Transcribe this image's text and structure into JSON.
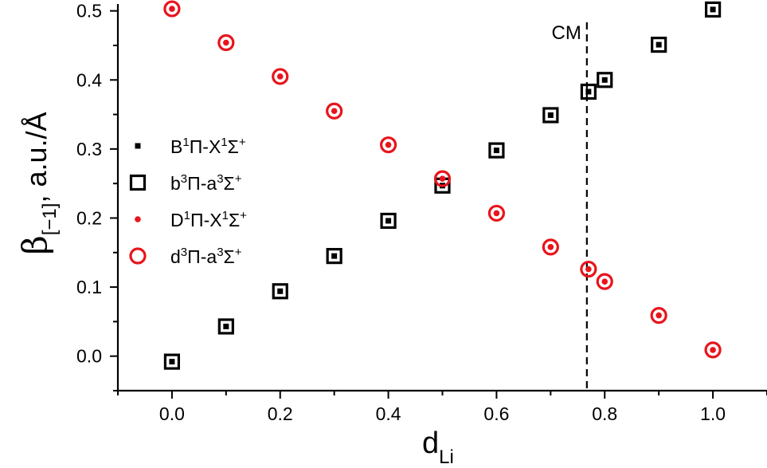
{
  "chart_data": {
    "type": "scatter",
    "xlabel": {
      "main": "d",
      "sub": "Li"
    },
    "ylabel": {
      "main": "β",
      "sub": "[−1]",
      "rest": ", a.u./Å"
    },
    "xlim": [
      -0.1,
      1.1
    ],
    "ylim": [
      -0.05,
      0.51
    ],
    "x_ticks": [
      "0.0",
      "0.2",
      "0.4",
      "0.6",
      "0.8",
      "1.0"
    ],
    "y_ticks": [
      "0.0",
      "0.1",
      "0.2",
      "0.3",
      "0.4",
      "0.5"
    ],
    "grid": false,
    "legend_position": "left-center",
    "series": [
      {
        "name": [
          "B",
          "1",
          "Π-X",
          "1",
          "Σ",
          "+"
        ],
        "marker": "filled-square-small",
        "color": "#000000",
        "x": [
          0.0,
          0.1,
          0.2,
          0.3,
          0.4,
          0.5,
          0.6,
          0.7,
          0.77,
          0.8,
          0.9,
          1.0
        ],
        "y": [
          -0.008,
          0.043,
          0.094,
          0.145,
          0.196,
          0.247,
          0.298,
          0.349,
          0.383,
          0.4,
          0.451,
          0.502
        ]
      },
      {
        "name": [
          "b",
          "3",
          "Π-a",
          "3",
          "Σ",
          "+"
        ],
        "marker": "open-square",
        "color": "#000000",
        "x": [
          0.0,
          0.1,
          0.2,
          0.3,
          0.4,
          0.5,
          0.6,
          0.7,
          0.77,
          0.8,
          0.9,
          1.0
        ],
        "y": [
          -0.008,
          0.043,
          0.094,
          0.145,
          0.196,
          0.247,
          0.298,
          0.349,
          0.383,
          0.4,
          0.451,
          0.502
        ]
      },
      {
        "name": [
          "D",
          "1",
          "Π-X",
          "1",
          "Σ",
          "+"
        ],
        "marker": "filled-circle-small",
        "color": "#e8141c",
        "x": [
          0.0,
          0.1,
          0.2,
          0.3,
          0.4,
          0.5,
          0.6,
          0.7,
          0.77,
          0.8,
          0.9,
          1.0
        ],
        "y": [
          0.503,
          0.454,
          0.405,
          0.355,
          0.306,
          0.257,
          0.207,
          0.158,
          0.126,
          0.108,
          0.059,
          0.009
        ]
      },
      {
        "name": [
          "d",
          "3",
          "Π-a",
          "3",
          "Σ",
          "+"
        ],
        "marker": "open-circle",
        "color": "#e8141c",
        "x": [
          0.0,
          0.1,
          0.2,
          0.3,
          0.4,
          0.5,
          0.6,
          0.7,
          0.77,
          0.8,
          0.9,
          1.0
        ],
        "y": [
          0.503,
          0.454,
          0.405,
          0.355,
          0.306,
          0.257,
          0.207,
          0.158,
          0.126,
          0.108,
          0.059,
          0.009
        ]
      }
    ],
    "annotations": [
      {
        "text": "CM",
        "x": 0.767,
        "style": "dashed-vertical-line"
      }
    ]
  }
}
